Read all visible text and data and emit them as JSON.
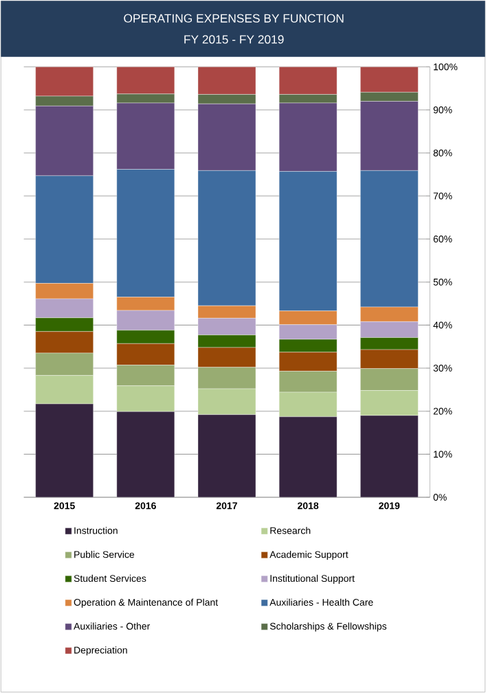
{
  "chart_data": {
    "type": "bar",
    "title": "OPERATING EXPENSES BY FUNCTION",
    "subtitle": "FY 2015 - FY 2019",
    "categories": [
      "2015",
      "2016",
      "2017",
      "2018",
      "2019"
    ],
    "stacked": true,
    "series": [
      {
        "name": "Instruction",
        "color": "#35243f",
        "values": [
          21.7,
          19.9,
          19.2,
          18.7,
          19.0
        ]
      },
      {
        "name": "Research",
        "color": "#b8cf95",
        "values": [
          6.6,
          6.0,
          6.0,
          5.7,
          5.8
        ]
      },
      {
        "name": "Public Service",
        "color": "#98ac72",
        "values": [
          5.2,
          4.8,
          5.0,
          4.9,
          5.1
        ]
      },
      {
        "name": "Academic Support",
        "color": "#984807",
        "values": [
          5.0,
          5.0,
          4.6,
          4.4,
          4.4
        ]
      },
      {
        "name": "Student Services",
        "color": "#336600",
        "values": [
          3.2,
          3.1,
          2.9,
          3.0,
          2.8
        ]
      },
      {
        "name": "Institutional Support",
        "color": "#b3a2c7",
        "values": [
          4.4,
          4.6,
          3.9,
          3.4,
          3.7
        ]
      },
      {
        "name": "Operation & Maintenance of Plant",
        "color": "#dc853f",
        "values": [
          3.6,
          3.1,
          2.9,
          3.2,
          3.4
        ]
      },
      {
        "name": "Auxiliaries - Health Care",
        "color": "#3e6c9f",
        "values": [
          25.0,
          29.7,
          31.4,
          32.4,
          31.7
        ]
      },
      {
        "name": "Auxiliaries - Other",
        "color": "#604a7b",
        "values": [
          16.2,
          15.4,
          15.5,
          15.9,
          16.1
        ]
      },
      {
        "name": "Scholarships & Fellowships",
        "color": "#5b6e4a",
        "values": [
          2.3,
          2.1,
          2.2,
          2.0,
          2.1
        ]
      },
      {
        "name": "Depreciation",
        "color": "#ab4744",
        "values": [
          6.8,
          6.3,
          6.4,
          6.4,
          5.9
        ]
      }
    ],
    "ylim": [
      0,
      100
    ],
    "yticks": [
      {
        "value": 0,
        "label": "0%"
      },
      {
        "value": 10,
        "label": "10%"
      },
      {
        "value": 20,
        "label": "20%"
      },
      {
        "value": 30,
        "label": "30%"
      },
      {
        "value": 40,
        "label": "40%"
      },
      {
        "value": 50,
        "label": "50%"
      },
      {
        "value": 60,
        "label": "60%"
      },
      {
        "value": 70,
        "label": "70%"
      },
      {
        "value": 80,
        "label": "80%"
      },
      {
        "value": 90,
        "label": "90%"
      },
      {
        "value": 100,
        "label": "100%"
      }
    ],
    "grid": "y",
    "legend": "bottom"
  }
}
